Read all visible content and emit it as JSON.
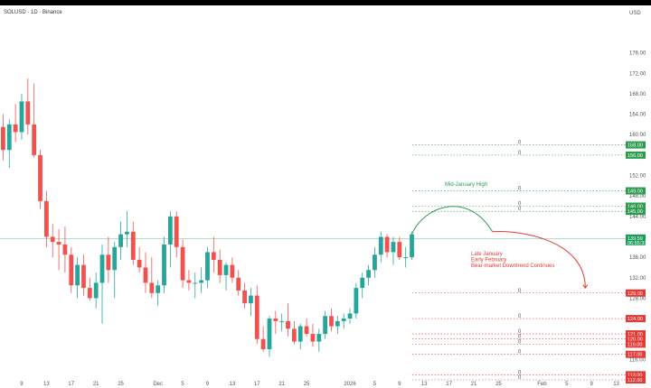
{
  "header": {
    "symbol": "SOLUSD · 1D · Binance",
    "currency": "USD"
  },
  "chart_data": {
    "type": "candlestick",
    "ylim": [
      112,
      180
    ],
    "y_ticks": [
      "176.00",
      "172.00",
      "168.00",
      "164.00",
      "160.00",
      "156.00",
      "152.00",
      "148.00",
      "144.00",
      "140.00",
      "136.00",
      "132.00",
      "128.00",
      "124.00",
      "120.00",
      "116.00",
      "112.00"
    ],
    "x_ticks": [
      {
        "label": "9",
        "i": 3
      },
      {
        "label": "13",
        "i": 7
      },
      {
        "label": "17",
        "i": 11
      },
      {
        "label": "21",
        "i": 15
      },
      {
        "label": "25",
        "i": 19
      },
      {
        "label": "Dec",
        "i": 25
      },
      {
        "label": "5",
        "i": 29
      },
      {
        "label": "9",
        "i": 33
      },
      {
        "label": "13",
        "i": 37
      },
      {
        "label": "17",
        "i": 41
      },
      {
        "label": "21",
        "i": 45
      },
      {
        "label": "25",
        "i": 49
      },
      {
        "label": "2026",
        "i": 56
      },
      {
        "label": "5",
        "i": 60
      },
      {
        "label": "9",
        "i": 64
      },
      {
        "label": "13",
        "i": 68
      },
      {
        "label": "17",
        "i": 72
      },
      {
        "label": "21",
        "i": 76
      },
      {
        "label": "25",
        "i": 80
      },
      {
        "label": "Feb",
        "i": 87
      },
      {
        "label": "5",
        "i": 91
      },
      {
        "label": "9",
        "i": 95
      },
      {
        "label": "13",
        "i": 99
      }
    ],
    "candles": [
      [
        161.5,
        164.0,
        155.0,
        157.0
      ],
      [
        157.0,
        163.0,
        153.5,
        162.0
      ],
      [
        162.0,
        166.0,
        158.5,
        160.5
      ],
      [
        160.5,
        168.0,
        159.0,
        166.5
      ],
      [
        166.5,
        171.0,
        160.0,
        162.0
      ],
      [
        162.0,
        170.0,
        155.5,
        156.0
      ],
      [
        156.0,
        157.0,
        145.5,
        147.0
      ],
      [
        147.0,
        149.0,
        138.0,
        140.0
      ],
      [
        140.0,
        142.5,
        136.0,
        139.0
      ],
      [
        139.0,
        141.5,
        133.5,
        138.5
      ],
      [
        138.5,
        142.0,
        133.0,
        136.5
      ],
      [
        136.5,
        138.0,
        129.0,
        130.5
      ],
      [
        130.5,
        136.0,
        128.0,
        134.5
      ],
      [
        134.5,
        136.5,
        128.5,
        130.0
      ],
      [
        130.0,
        132.0,
        127.5,
        128.0
      ],
      [
        128.0,
        133.0,
        126.0,
        131.0
      ],
      [
        131.0,
        138.5,
        123.0,
        136.5
      ],
      [
        136.5,
        140.0,
        131.0,
        133.5
      ],
      [
        133.5,
        139.0,
        128.0,
        138.0
      ],
      [
        138.0,
        143.0,
        135.5,
        140.5
      ],
      [
        140.5,
        145.0,
        138.0,
        141.0
      ],
      [
        141.0,
        143.0,
        134.5,
        135.5
      ],
      [
        135.5,
        138.0,
        133.0,
        134.0
      ],
      [
        134.0,
        137.0,
        129.0,
        131.0
      ],
      [
        131.0,
        136.0,
        128.0,
        129.0
      ],
      [
        129.0,
        131.5,
        126.5,
        130.5
      ],
      [
        130.5,
        140.0,
        129.0,
        138.5
      ],
      [
        138.5,
        145.0,
        134.0,
        144.0
      ],
      [
        144.0,
        145.0,
        136.0,
        138.0
      ],
      [
        138.0,
        139.5,
        130.0,
        131.5
      ],
      [
        131.5,
        133.5,
        129.5,
        131.0
      ],
      [
        131.0,
        133.0,
        128.0,
        131.0
      ],
      [
        131.0,
        134.0,
        129.0,
        131.5
      ],
      [
        131.5,
        138.0,
        130.0,
        137.0
      ],
      [
        137.0,
        140.0,
        133.0,
        135.5
      ],
      [
        135.5,
        137.5,
        131.0,
        132.5
      ],
      [
        132.5,
        135.0,
        129.5,
        134.5
      ],
      [
        134.5,
        136.0,
        131.0,
        132.0
      ],
      [
        132.0,
        133.5,
        128.5,
        129.5
      ],
      [
        129.5,
        131.0,
        126.0,
        127.0
      ],
      [
        127.0,
        130.0,
        124.5,
        128.5
      ],
      [
        128.5,
        130.5,
        119.0,
        120.0
      ],
      [
        120.0,
        122.5,
        117.5,
        118.0
      ],
      [
        118.0,
        124.5,
        116.5,
        124.0
      ],
      [
        124.0,
        125.5,
        121.0,
        123.5
      ],
      [
        123.5,
        125.0,
        121.5,
        123.5
      ],
      [
        123.5,
        127.0,
        120.5,
        122.0
      ],
      [
        122.0,
        123.5,
        119.0,
        119.5
      ],
      [
        119.5,
        123.0,
        118.0,
        122.5
      ],
      [
        122.5,
        124.0,
        120.5,
        121.0
      ],
      [
        121.0,
        123.0,
        118.5,
        119.5
      ],
      [
        119.5,
        122.0,
        117.5,
        121.0
      ],
      [
        121.0,
        125.5,
        120.0,
        124.5
      ],
      [
        124.5,
        126.0,
        121.5,
        122.5
      ],
      [
        122.5,
        124.5,
        121.0,
        123.5
      ],
      [
        123.5,
        125.0,
        122.0,
        124.0
      ],
      [
        124.0,
        126.0,
        123.0,
        125.0
      ],
      [
        125.0,
        131.0,
        124.0,
        130.0
      ],
      [
        130.0,
        133.0,
        128.0,
        132.0
      ],
      [
        132.0,
        134.5,
        130.5,
        133.5
      ],
      [
        133.5,
        138.0,
        132.0,
        136.5
      ],
      [
        136.5,
        141.0,
        135.0,
        140.0
      ],
      [
        140.0,
        140.5,
        136.0,
        137.0
      ],
      [
        137.0,
        140.0,
        134.5,
        139.0
      ],
      [
        139.0,
        140.0,
        135.5,
        136.0
      ],
      [
        136.0,
        138.0,
        134.0,
        136.0
      ],
      [
        136.0,
        141.0,
        135.5,
        140.5
      ]
    ],
    "price_labels": [
      {
        "value": "158.00",
        "color": "#2e9b4f",
        "y": 158.0
      },
      {
        "value": "156.00",
        "color": "#2e9b4f",
        "y": 156.0
      },
      {
        "value": "149.00",
        "color": "#2e9b4f",
        "y": 149.0
      },
      {
        "value": "146.00",
        "color": "#2e9b4f",
        "y": 146.0
      },
      {
        "value": "145.00",
        "color": "#2e9b4f",
        "y": 145.0
      },
      {
        "value": "139.59",
        "color": "#1e9a5a",
        "y": 139.59,
        "sub": "06:55:33"
      },
      {
        "value": "129.00",
        "color": "#e53935",
        "y": 129.0
      },
      {
        "value": "124.00",
        "color": "#e53935",
        "y": 124.0
      },
      {
        "value": "121.00",
        "color": "#e53935",
        "y": 121.0
      },
      {
        "value": "120.00",
        "color": "#e53935",
        "y": 120.0
      },
      {
        "value": "119.00",
        "color": "#e53935",
        "y": 119.0
      },
      {
        "value": "117.00",
        "color": "#e53935",
        "y": 117.0
      },
      {
        "value": "113.00",
        "color": "#e53935",
        "y": 113.0
      },
      {
        "value": "112.00",
        "color": "#e53935",
        "y": 112.0
      }
    ],
    "annotations": {
      "high": "Mid-January High",
      "low_lines": [
        "Late January",
        "Early February",
        "Bear-market Downtrend Continues"
      ]
    },
    "colors": {
      "up": "#26a69a",
      "down": "#ef5350",
      "green": "#2e9b4f",
      "red": "#e53935",
      "current": "#1e9a5a"
    }
  }
}
